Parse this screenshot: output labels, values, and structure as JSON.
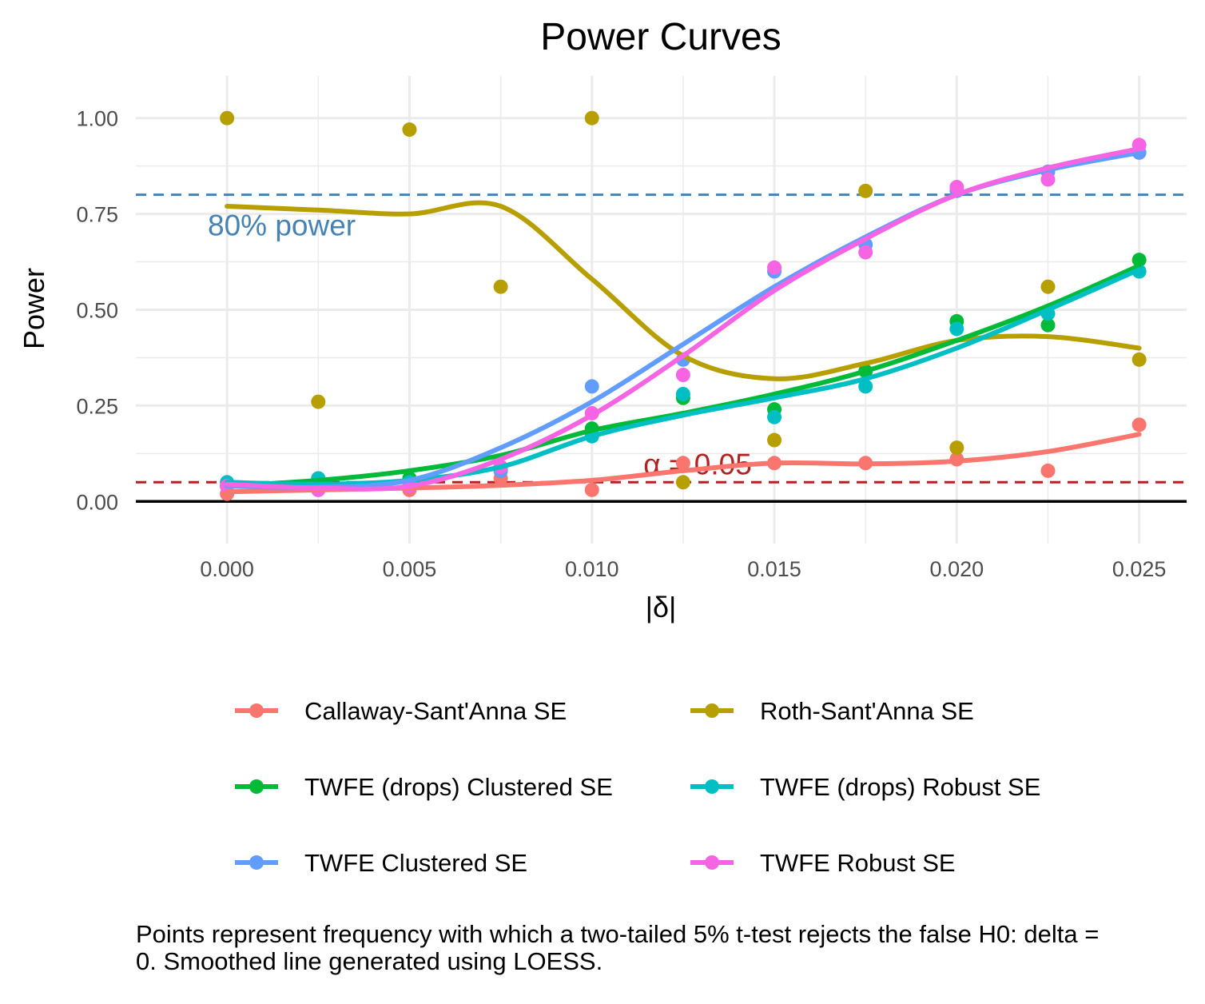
{
  "chart_data": {
    "type": "scatter",
    "title": "Power Curves",
    "xlabel": "|δ|",
    "ylabel": "Power",
    "xlim": [
      -0.0025,
      0.0263
    ],
    "ylim": [
      -0.11,
      1.11
    ],
    "x_ticks": [
      0,
      0.005,
      0.01,
      0.015,
      0.02,
      0.025
    ],
    "x_tick_labels": [
      "0.000",
      "0.005",
      "0.010",
      "0.015",
      "0.020",
      "0.025"
    ],
    "y_ticks": [
      0,
      0.25,
      0.5,
      0.75,
      1.0
    ],
    "y_tick_labels": [
      "0.00",
      "0.25",
      "0.50",
      "0.75",
      "1.00"
    ],
    "grid": true,
    "legend_position": "bottom",
    "x": [
      0,
      0.0025,
      0.005,
      0.0075,
      0.01,
      0.0125,
      0.015,
      0.0175,
      0.02,
      0.0225,
      0.025
    ],
    "reference_lines": [
      {
        "y": 0.8,
        "label": "80% power",
        "color": "#4682b4"
      },
      {
        "y": 0.05,
        "label": "α = 0.05",
        "color": "#b22222"
      },
      {
        "y": 0,
        "label": "",
        "color": "#000000"
      }
    ],
    "series": [
      {
        "name": "Callaway-Sant'Anna SE",
        "color": "#F8766D",
        "points": [
          0.02,
          0.06,
          0.03,
          0.06,
          0.03,
          0.1,
          0.1,
          0.1,
          0.11,
          0.08,
          0.2
        ],
        "smooth": [
          0.025,
          0.03,
          0.035,
          0.042,
          0.055,
          0.08,
          0.1,
          0.098,
          0.105,
          0.13,
          0.175
        ]
      },
      {
        "name": "Roth-Sant'Anna SE",
        "color": "#B79F00",
        "points": [
          1.0,
          0.26,
          0.97,
          0.56,
          1.0,
          0.05,
          0.16,
          0.81,
          0.14,
          0.56,
          0.37
        ],
        "smooth": [
          0.77,
          0.76,
          0.75,
          0.77,
          0.58,
          0.38,
          0.32,
          0.36,
          0.42,
          0.43,
          0.4
        ]
      },
      {
        "name": "TWFE (drops) Clustered SE",
        "color": "#00BA38",
        "points": [
          0.04,
          0.05,
          0.06,
          0.08,
          0.19,
          0.27,
          0.24,
          0.34,
          0.47,
          0.46,
          0.63
        ],
        "smooth": [
          0.04,
          0.055,
          0.08,
          0.12,
          0.185,
          0.23,
          0.28,
          0.34,
          0.42,
          0.51,
          0.615
        ]
      },
      {
        "name": "TWFE (drops) Robust SE",
        "color": "#00BFC4",
        "points": [
          0.05,
          0.06,
          0.05,
          0.09,
          0.17,
          0.28,
          0.22,
          0.3,
          0.45,
          0.49,
          0.6
        ],
        "smooth": [
          0.05,
          0.045,
          0.055,
          0.09,
          0.17,
          0.225,
          0.27,
          0.32,
          0.4,
          0.5,
          0.605
        ]
      },
      {
        "name": "TWFE Clustered SE",
        "color": "#619CFF",
        "points": [
          0.04,
          0.03,
          0.04,
          0.08,
          0.3,
          0.37,
          0.6,
          0.67,
          0.81,
          0.86,
          0.91
        ],
        "smooth": [
          0.04,
          0.037,
          0.055,
          0.14,
          0.26,
          0.41,
          0.56,
          0.69,
          0.8,
          0.865,
          0.91
        ]
      },
      {
        "name": "TWFE Robust SE",
        "color": "#F564E3",
        "points": [
          0.04,
          0.03,
          0.04,
          0.09,
          0.23,
          0.33,
          0.61,
          0.65,
          0.82,
          0.84,
          0.93
        ],
        "smooth": [
          0.045,
          0.035,
          0.04,
          0.11,
          0.225,
          0.38,
          0.55,
          0.685,
          0.8,
          0.87,
          0.92
        ]
      }
    ]
  },
  "caption": {
    "line1": "Points represent frequency with which a two-tailed 5% t-test rejects the false H0: delta =",
    "line2": "0. Smoothed line generated using LOESS."
  }
}
